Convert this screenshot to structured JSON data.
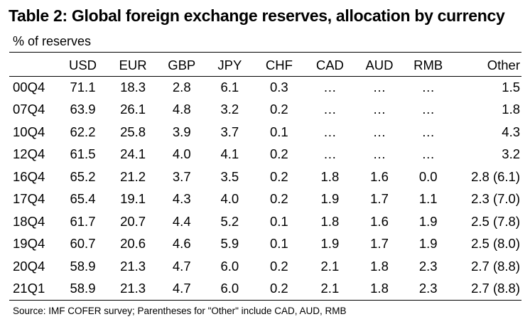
{
  "chart_data": {
    "type": "table",
    "title": "Table 2: Global foreign exchange reserves, allocation by currency",
    "subtitle": "% of reserves",
    "columns": [
      "",
      "USD",
      "EUR",
      "GBP",
      "JPY",
      "CHF",
      "CAD",
      "AUD",
      "RMB",
      "Other"
    ],
    "rows": [
      [
        "00Q4",
        "71.1",
        "18.3",
        "2.8",
        "6.1",
        "0.3",
        "…",
        "…",
        "…",
        "1.5"
      ],
      [
        "07Q4",
        "63.9",
        "26.1",
        "4.8",
        "3.2",
        "0.2",
        "…",
        "…",
        "…",
        "1.8"
      ],
      [
        "10Q4",
        "62.2",
        "25.8",
        "3.9",
        "3.7",
        "0.1",
        "…",
        "…",
        "…",
        "4.3"
      ],
      [
        "12Q4",
        "61.5",
        "24.1",
        "4.0",
        "4.1",
        "0.2",
        "…",
        "…",
        "…",
        "3.2"
      ],
      [
        "16Q4",
        "65.2",
        "21.2",
        "3.7",
        "3.5",
        "0.2",
        "1.8",
        "1.6",
        "0.0",
        "2.8 (6.1)"
      ],
      [
        "17Q4",
        "65.4",
        "19.1",
        "4.3",
        "4.0",
        "0.2",
        "1.9",
        "1.7",
        "1.1",
        "2.3 (7.0)"
      ],
      [
        "18Q4",
        "61.7",
        "20.7",
        "4.4",
        "5.2",
        "0.1",
        "1.8",
        "1.6",
        "1.9",
        "2.5 (7.8)"
      ],
      [
        "19Q4",
        "60.7",
        "20.6",
        "4.6",
        "5.9",
        "0.1",
        "1.9",
        "1.7",
        "1.9",
        "2.5 (8.0)"
      ],
      [
        "20Q4",
        "58.9",
        "21.3",
        "4.7",
        "6.0",
        "0.2",
        "2.1",
        "1.8",
        "2.3",
        "2.7 (8.8)"
      ],
      [
        "21Q1",
        "58.9",
        "21.3",
        "4.7",
        "6.0",
        "0.2",
        "2.1",
        "1.8",
        "2.3",
        "2.7 (8.8)"
      ]
    ],
    "source": "Source: IMF COFER survey; Parentheses for \"Other\" include CAD, AUD, RMB"
  }
}
